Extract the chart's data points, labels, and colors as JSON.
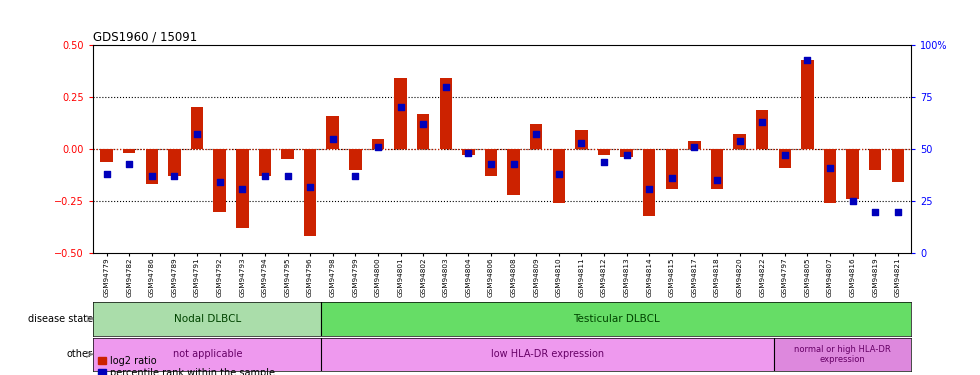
{
  "title": "GDS1960 / 15091",
  "samples": [
    "GSM94779",
    "GSM94782",
    "GSM94786",
    "GSM94789",
    "GSM94791",
    "GSM94792",
    "GSM94793",
    "GSM94794",
    "GSM94795",
    "GSM94796",
    "GSM94798",
    "GSM94799",
    "GSM94800",
    "GSM94801",
    "GSM94802",
    "GSM94803",
    "GSM94804",
    "GSM94806",
    "GSM94808",
    "GSM94809",
    "GSM94810",
    "GSM94811",
    "GSM94812",
    "GSM94813",
    "GSM94814",
    "GSM94815",
    "GSM94817",
    "GSM94818",
    "GSM94820",
    "GSM94822",
    "GSM94797",
    "GSM94805",
    "GSM94807",
    "GSM94816",
    "GSM94819",
    "GSM94821"
  ],
  "log2_ratio": [
    -0.06,
    -0.02,
    -0.17,
    -0.13,
    0.2,
    -0.3,
    -0.38,
    -0.13,
    -0.05,
    -0.42,
    0.16,
    -0.1,
    0.05,
    0.34,
    0.17,
    0.34,
    -0.03,
    -0.13,
    -0.22,
    0.12,
    -0.26,
    0.09,
    -0.03,
    -0.04,
    -0.32,
    -0.19,
    0.04,
    -0.19,
    0.07,
    0.19,
    -0.09,
    0.43,
    -0.26,
    -0.24,
    -0.1,
    -0.16
  ],
  "percentile": [
    38,
    43,
    37,
    37,
    57,
    34,
    31,
    37,
    37,
    32,
    55,
    37,
    51,
    70,
    62,
    80,
    48,
    43,
    43,
    57,
    38,
    53,
    44,
    47,
    31,
    36,
    51,
    35,
    54,
    63,
    47,
    93,
    41,
    25,
    20,
    20
  ],
  "nodal_count": 10,
  "low_hladr_count": 20,
  "bar_color": "#CC2200",
  "dot_color": "#0000BB",
  "ylim": [
    -0.5,
    0.5
  ],
  "y2lim": [
    0,
    100
  ],
  "yticks": [
    -0.5,
    -0.25,
    0.0,
    0.25,
    0.5
  ],
  "y2ticks": [
    0,
    25,
    50,
    75,
    100
  ],
  "bar_width": 0.55,
  "nodal_color": "#AADDAA",
  "testicular_color": "#66DD66",
  "other_pink": "#EE99EE",
  "other_pink2": "#DD88DD"
}
